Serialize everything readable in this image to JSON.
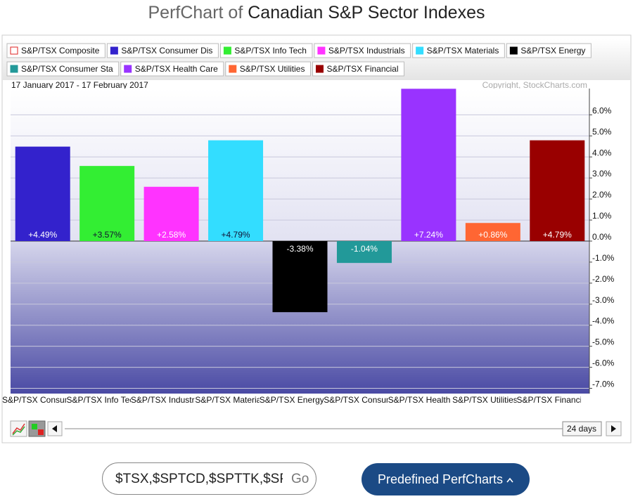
{
  "header": {
    "prefix": "PerfChart of",
    "title": "Canadian S&P Sector Indexes"
  },
  "chart_data": {
    "type": "bar",
    "date_range": "17 January 2017 - 17 February 2017",
    "copyright": "Copyright, StockCharts.com",
    "legend": [
      {
        "name": "S&P/TSX Composite",
        "color": "#dd2222",
        "hollow": true
      },
      {
        "name": "S&P/TSX Consumer Dis",
        "color": "#3322cc"
      },
      {
        "name": "S&P/TSX Info Tech",
        "color": "#33ee33"
      },
      {
        "name": "S&P/TSX Industrials",
        "color": "#ff33ff"
      },
      {
        "name": "S&P/TSX Materials",
        "color": "#33ddff"
      },
      {
        "name": "S&P/TSX Energy",
        "color": "#000000"
      },
      {
        "name": "S&P/TSX Consumer Sta",
        "color": "#229999"
      },
      {
        "name": "S&P/TSX Health Care",
        "color": "#9933ff"
      },
      {
        "name": "S&P/TSX Utilities",
        "color": "#ff6633"
      },
      {
        "name": "S&P/TSX Financial",
        "color": "#990000"
      }
    ],
    "categories": [
      "S&P/TSX Consumer Dis",
      "S&P/TSX Info Tech",
      "S&P/TSX Industrials",
      "S&P/TSX Materials",
      "S&P/TSX Energy",
      "S&P/TSX Consumer Sta",
      "S&P/TSX Health Care",
      "S&P/TSX Utilities",
      "S&P/TSX Financial"
    ],
    "values": [
      4.49,
      3.57,
      2.58,
      4.79,
      -3.38,
      -1.04,
      7.24,
      0.86,
      4.79
    ],
    "value_labels": [
      "+4.49%",
      "+3.57%",
      "+2.58%",
      "+4.79%",
      "-3.38%",
      "-1.04%",
      "+7.24%",
      "+0.86%",
      "+4.79%"
    ],
    "colors": [
      "#3322cc",
      "#33ee33",
      "#ff33ff",
      "#33ddff",
      "#000000",
      "#229999",
      "#9933ff",
      "#ff6633",
      "#990000"
    ],
    "ylim": [
      -7.25,
      7.25
    ],
    "yticks": [
      {
        "value": -7,
        "label": "-7.0%"
      },
      {
        "value": -6,
        "label": "-6.0%"
      },
      {
        "value": -5,
        "label": "-5.0%"
      },
      {
        "value": -4,
        "label": "-4.0%"
      },
      {
        "value": -3,
        "label": "-3.0%"
      },
      {
        "value": -2,
        "label": "-2.0%"
      },
      {
        "value": -1,
        "label": "-1.0%"
      },
      {
        "value": 0,
        "label": "0.0%"
      },
      {
        "value": 1,
        "label": "1.0%"
      },
      {
        "value": 2,
        "label": "2.0%"
      },
      {
        "value": 3,
        "label": "3.0%"
      },
      {
        "value": 4,
        "label": "4.0%"
      },
      {
        "value": 5,
        "label": "5.0%"
      },
      {
        "value": 6,
        "label": "6.0%"
      }
    ],
    "grid": true,
    "period": "24 days"
  },
  "controls": {
    "symbols": "$TSX,$SPTCD,$SPTTK,$SP",
    "go": "Go",
    "predefined": "Predefined PerfCharts"
  }
}
